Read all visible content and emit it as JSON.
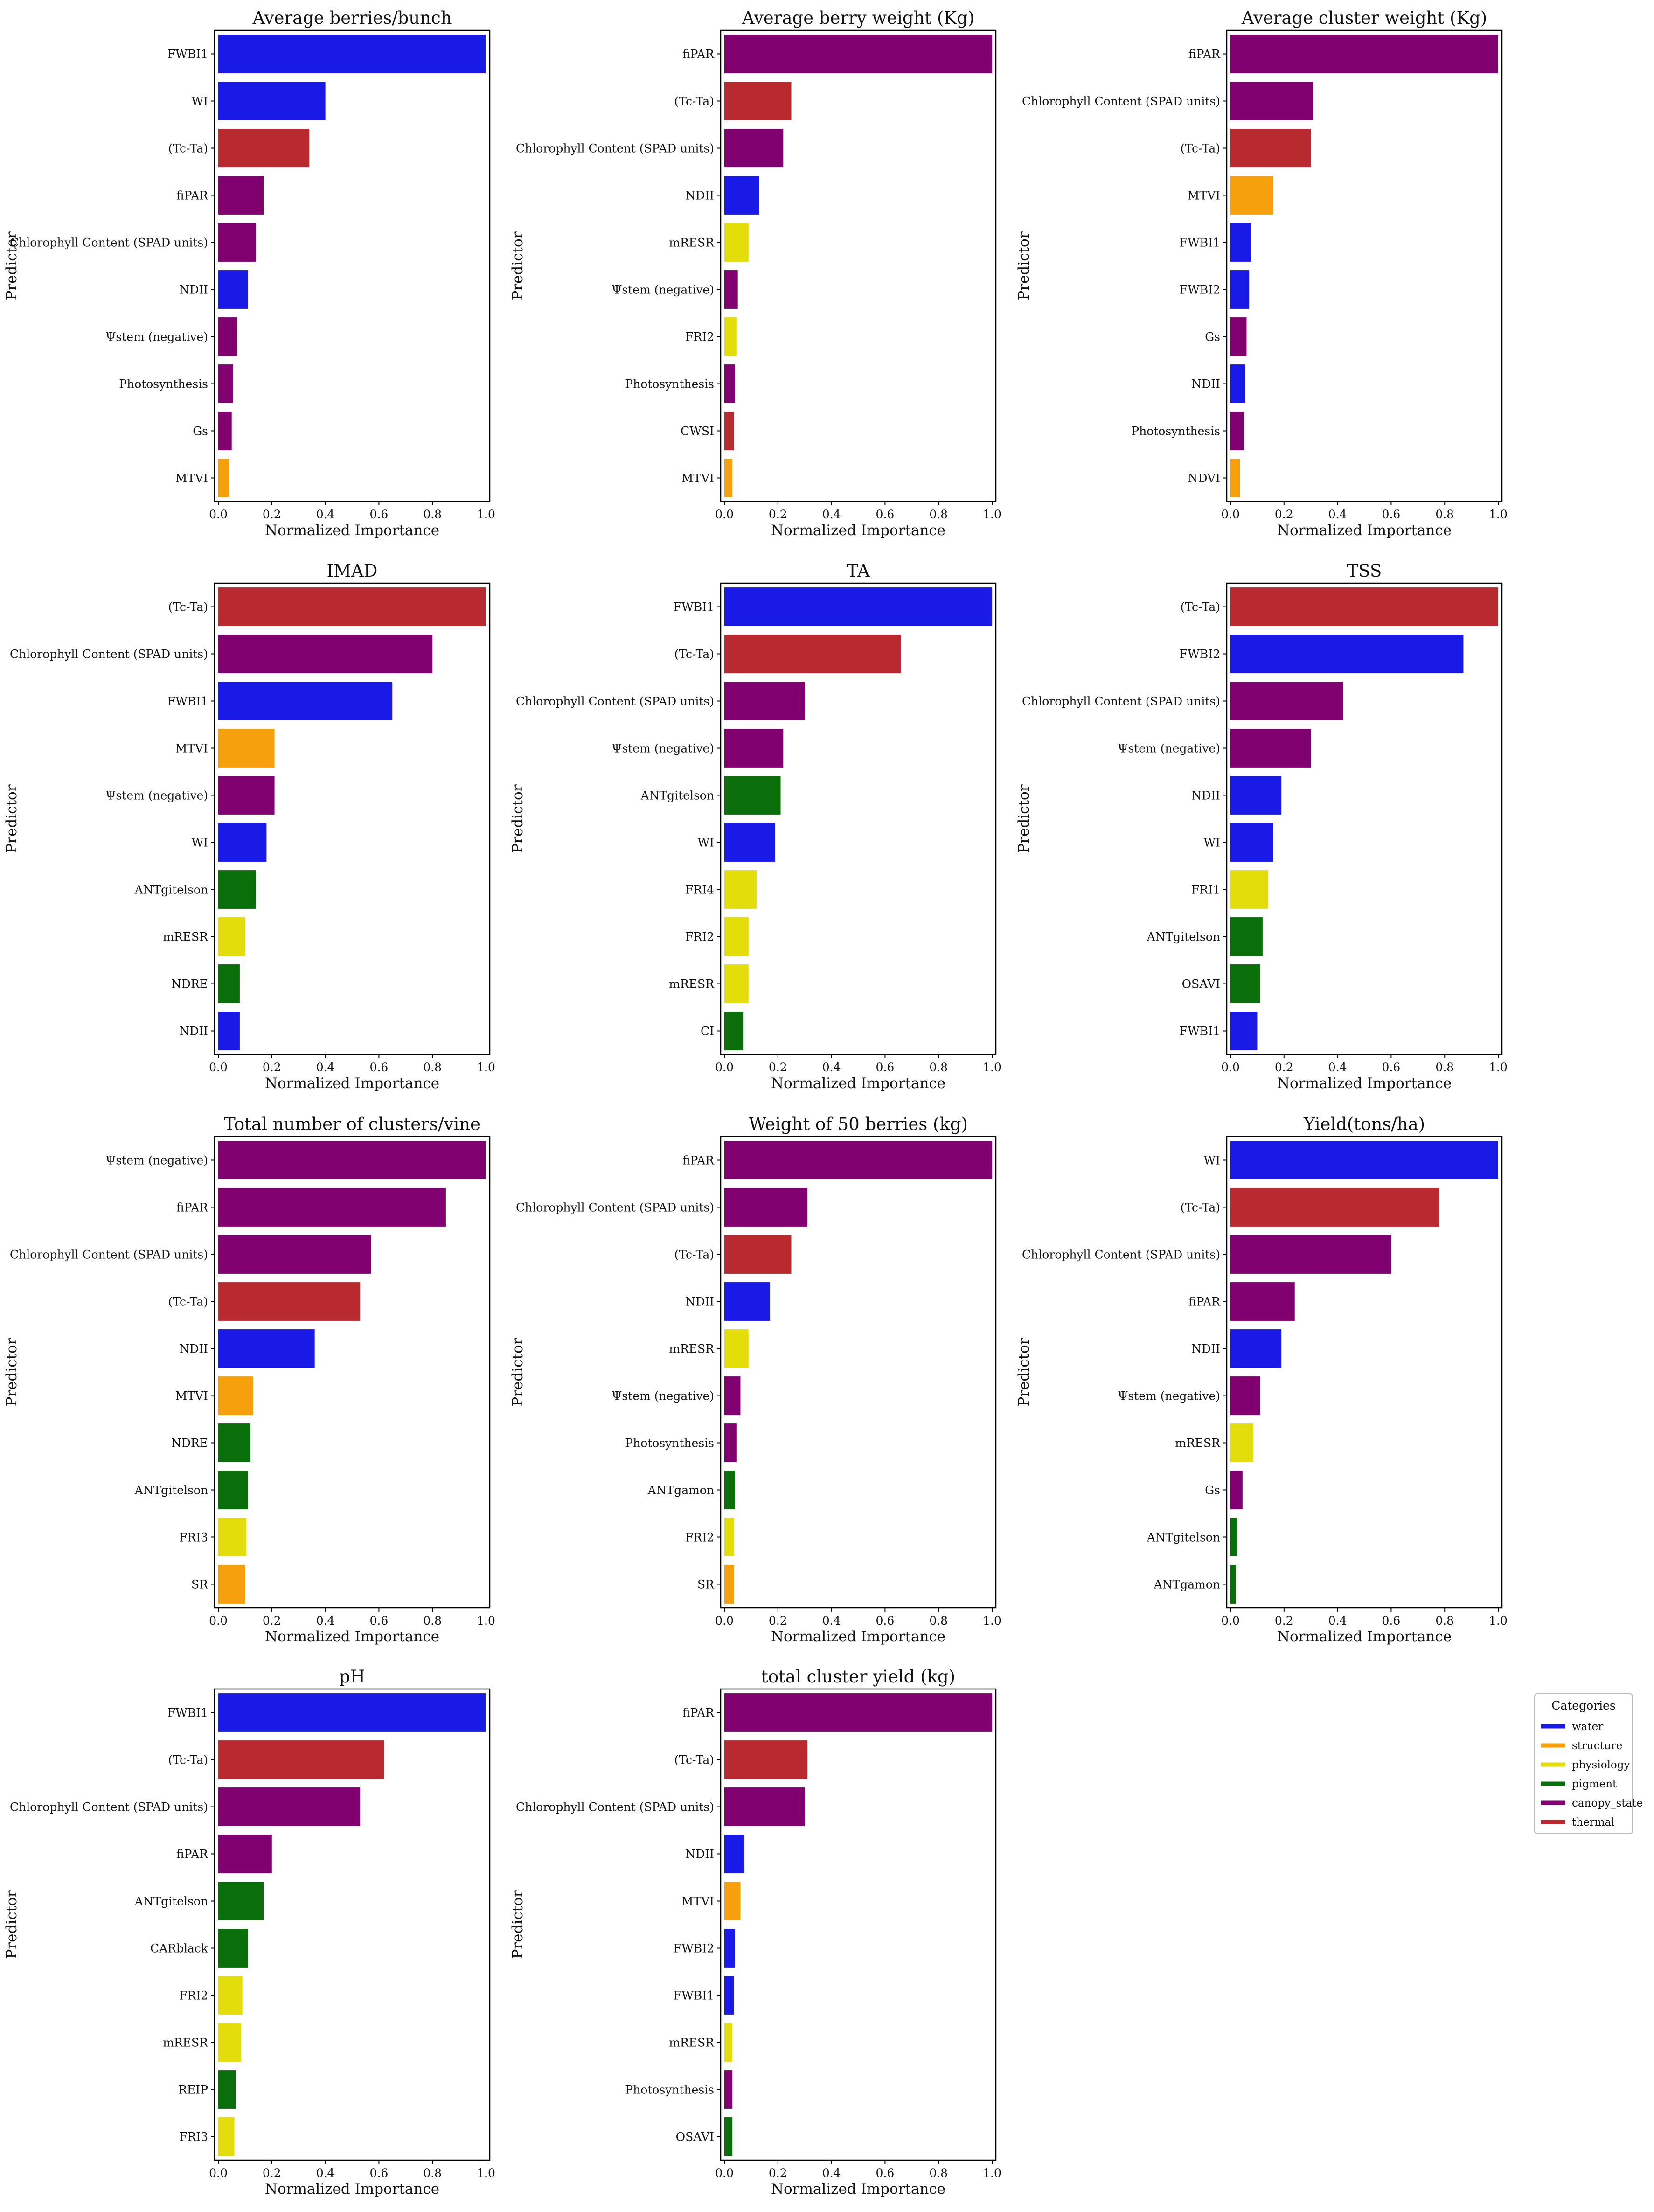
{
  "axis_common": {
    "xlabel": "Normalized Importance",
    "ylabel": "Predictor",
    "xlim": [
      0,
      1.0
    ],
    "xticks": [
      "0.0",
      "0.2",
      "0.4",
      "0.6",
      "0.8",
      "1.0"
    ]
  },
  "legend": {
    "title": "Categories",
    "placement": "right, beside bottom row",
    "items": [
      {
        "label": "water",
        "color": "#1a1ae6"
      },
      {
        "label": "structure",
        "color": "#f5a00c"
      },
      {
        "label": "physiology",
        "color": "#e3de0b"
      },
      {
        "label": "pigment",
        "color": "#0a6e0a"
      },
      {
        "label": "canopy_state",
        "color": "#800070"
      },
      {
        "label": "thermal",
        "color": "#b82a30"
      }
    ]
  },
  "chart_data": [
    {
      "type": "bar",
      "orientation": "horizontal",
      "title": "Average berries/bunch",
      "xlabel": "Normalized Importance",
      "ylabel": "Predictor",
      "xlim": [
        0,
        1.0
      ],
      "categories": [
        "FWBI1",
        "WI",
        "(Tc-Ta)",
        "fiPAR",
        "Chlorophyll Content (SPAD units)",
        "NDII",
        "Ψstem (negative)",
        "Photosynthesis",
        "Gs",
        "MTVI"
      ],
      "values": [
        1.0,
        0.4,
        0.34,
        0.17,
        0.14,
        0.11,
        0.07,
        0.055,
        0.05,
        0.04
      ],
      "groups": [
        "water",
        "water",
        "thermal",
        "canopy_state",
        "canopy_state",
        "water",
        "canopy_state",
        "canopy_state",
        "canopy_state",
        "structure"
      ]
    },
    {
      "type": "bar",
      "orientation": "horizontal",
      "title": "Average berry weight (Kg)",
      "xlabel": "Normalized Importance",
      "ylabel": "Predictor",
      "xlim": [
        0,
        1.0
      ],
      "categories": [
        "fiPAR",
        "(Tc-Ta)",
        "Chlorophyll Content (SPAD units)",
        "NDII",
        "mRESR",
        "Ψstem (negative)",
        "FRI2",
        "Photosynthesis",
        "CWSI",
        "MTVI"
      ],
      "values": [
        1.0,
        0.25,
        0.22,
        0.13,
        0.09,
        0.05,
        0.045,
        0.04,
        0.035,
        0.03
      ],
      "groups": [
        "canopy_state",
        "thermal",
        "canopy_state",
        "water",
        "physiology",
        "canopy_state",
        "physiology",
        "canopy_state",
        "thermal",
        "structure"
      ]
    },
    {
      "type": "bar",
      "orientation": "horizontal",
      "title": "Average cluster weight (Kg)",
      "xlabel": "Normalized Importance",
      "ylabel": "Predictor",
      "xlim": [
        0,
        1.0
      ],
      "categories": [
        "fiPAR",
        "Chlorophyll Content (SPAD units)",
        "(Tc-Ta)",
        "MTVI",
        "FWBI1",
        "FWBI2",
        "Gs",
        "NDII",
        "Photosynthesis",
        "NDVI"
      ],
      "values": [
        1.0,
        0.31,
        0.3,
        0.16,
        0.075,
        0.07,
        0.06,
        0.055,
        0.05,
        0.035
      ],
      "groups": [
        "canopy_state",
        "canopy_state",
        "thermal",
        "structure",
        "water",
        "water",
        "canopy_state",
        "water",
        "canopy_state",
        "structure"
      ]
    },
    {
      "type": "bar",
      "orientation": "horizontal",
      "title": "IMAD",
      "xlabel": "Normalized Importance",
      "ylabel": "Predictor",
      "xlim": [
        0,
        1.0
      ],
      "categories": [
        "(Tc-Ta)",
        "Chlorophyll Content (SPAD units)",
        "FWBI1",
        "MTVI",
        "Ψstem (negative)",
        "WI",
        "ANTgitelson",
        "mRESR",
        "NDRE",
        "NDII"
      ],
      "values": [
        1.0,
        0.8,
        0.65,
        0.21,
        0.21,
        0.18,
        0.14,
        0.1,
        0.08,
        0.08
      ],
      "groups": [
        "thermal",
        "canopy_state",
        "water",
        "structure",
        "canopy_state",
        "water",
        "pigment",
        "physiology",
        "pigment",
        "water"
      ]
    },
    {
      "type": "bar",
      "orientation": "horizontal",
      "title": "TA",
      "xlabel": "Normalized Importance",
      "ylabel": "Predictor",
      "xlim": [
        0,
        1.0
      ],
      "categories": [
        "FWBI1",
        "(Tc-Ta)",
        "Chlorophyll Content (SPAD units)",
        "Ψstem (negative)",
        "ANTgitelson",
        "WI",
        "FRI4",
        "FRI2",
        "mRESR",
        "CI"
      ],
      "values": [
        1.0,
        0.66,
        0.3,
        0.22,
        0.21,
        0.19,
        0.12,
        0.09,
        0.09,
        0.07
      ],
      "groups": [
        "water",
        "thermal",
        "canopy_state",
        "canopy_state",
        "pigment",
        "water",
        "physiology",
        "physiology",
        "physiology",
        "pigment"
      ]
    },
    {
      "type": "bar",
      "orientation": "horizontal",
      "title": "TSS",
      "xlabel": "Normalized Importance",
      "ylabel": "Predictor",
      "xlim": [
        0,
        1.0
      ],
      "categories": [
        "(Tc-Ta)",
        "FWBI2",
        "Chlorophyll Content (SPAD units)",
        "Ψstem (negative)",
        "NDII",
        "WI",
        "FRI1",
        "ANTgitelson",
        "OSAVI",
        "FWBI1"
      ],
      "values": [
        1.0,
        0.87,
        0.42,
        0.3,
        0.19,
        0.16,
        0.14,
        0.12,
        0.11,
        0.1
      ],
      "groups": [
        "thermal",
        "water",
        "canopy_state",
        "canopy_state",
        "water",
        "water",
        "physiology",
        "pigment",
        "pigment",
        "water"
      ]
    },
    {
      "type": "bar",
      "orientation": "horizontal",
      "title": "Total number of clusters/vine",
      "xlabel": "Normalized Importance",
      "ylabel": "Predictor",
      "xlim": [
        0,
        1.0
      ],
      "categories": [
        "Ψstem (negative)",
        "fiPAR",
        "Chlorophyll Content (SPAD units)",
        "(Tc-Ta)",
        "NDII",
        "MTVI",
        "NDRE",
        "ANTgitelson",
        "FRI3",
        "SR"
      ],
      "values": [
        1.0,
        0.85,
        0.57,
        0.53,
        0.36,
        0.13,
        0.12,
        0.11,
        0.105,
        0.1
      ],
      "groups": [
        "canopy_state",
        "canopy_state",
        "canopy_state",
        "thermal",
        "water",
        "structure",
        "pigment",
        "pigment",
        "physiology",
        "structure"
      ]
    },
    {
      "type": "bar",
      "orientation": "horizontal",
      "title": "Weight of 50 berries (kg)",
      "xlabel": "Normalized Importance",
      "ylabel": "Predictor",
      "xlim": [
        0,
        1.0
      ],
      "categories": [
        "fiPAR",
        "Chlorophyll Content (SPAD units)",
        "(Tc-Ta)",
        "NDII",
        "mRESR",
        "Ψstem (negative)",
        "Photosynthesis",
        "ANTgamon",
        "FRI2",
        "SR"
      ],
      "values": [
        1.0,
        0.31,
        0.25,
        0.17,
        0.09,
        0.06,
        0.045,
        0.04,
        0.035,
        0.035
      ],
      "groups": [
        "canopy_state",
        "canopy_state",
        "thermal",
        "water",
        "physiology",
        "canopy_state",
        "canopy_state",
        "pigment",
        "physiology",
        "structure"
      ]
    },
    {
      "type": "bar",
      "orientation": "horizontal",
      "title": "Yield(tons/ha)",
      "xlabel": "Normalized Importance",
      "ylabel": "Predictor",
      "xlim": [
        0,
        1.0
      ],
      "categories": [
        "WI",
        "(Tc-Ta)",
        "Chlorophyll Content (SPAD units)",
        "fiPAR",
        "NDII",
        "Ψstem (negative)",
        "mRESR",
        "Gs",
        "ANTgitelson",
        "ANTgamon"
      ],
      "values": [
        1.0,
        0.78,
        0.6,
        0.24,
        0.19,
        0.11,
        0.085,
        0.045,
        0.025,
        0.02
      ],
      "groups": [
        "water",
        "thermal",
        "canopy_state",
        "canopy_state",
        "water",
        "canopy_state",
        "physiology",
        "canopy_state",
        "pigment",
        "pigment"
      ]
    },
    {
      "type": "bar",
      "orientation": "horizontal",
      "title": "pH",
      "xlabel": "Normalized Importance",
      "ylabel": "Predictor",
      "xlim": [
        0,
        1.0
      ],
      "categories": [
        "FWBI1",
        "(Tc-Ta)",
        "Chlorophyll Content (SPAD units)",
        "fiPAR",
        "ANTgitelson",
        "CARblack",
        "FRI2",
        "mRESR",
        "REIP",
        "FRI3"
      ],
      "values": [
        1.0,
        0.62,
        0.53,
        0.2,
        0.17,
        0.11,
        0.09,
        0.085,
        0.065,
        0.06
      ],
      "groups": [
        "water",
        "thermal",
        "canopy_state",
        "canopy_state",
        "pigment",
        "pigment",
        "physiology",
        "physiology",
        "pigment",
        "physiology"
      ]
    },
    {
      "type": "bar",
      "orientation": "horizontal",
      "title": "total cluster yield (kg)",
      "xlabel": "Normalized Importance",
      "ylabel": "Predictor",
      "xlim": [
        0,
        1.0
      ],
      "categories": [
        "fiPAR",
        "(Tc-Ta)",
        "Chlorophyll Content (SPAD units)",
        "NDII",
        "MTVI",
        "FWBI2",
        "FWBI1",
        "mRESR",
        "Photosynthesis",
        "OSAVI"
      ],
      "values": [
        1.0,
        0.31,
        0.3,
        0.075,
        0.06,
        0.04,
        0.035,
        0.03,
        0.03,
        0.03
      ],
      "groups": [
        "canopy_state",
        "thermal",
        "canopy_state",
        "water",
        "structure",
        "water",
        "water",
        "physiology",
        "canopy_state",
        "pigment"
      ]
    }
  ]
}
